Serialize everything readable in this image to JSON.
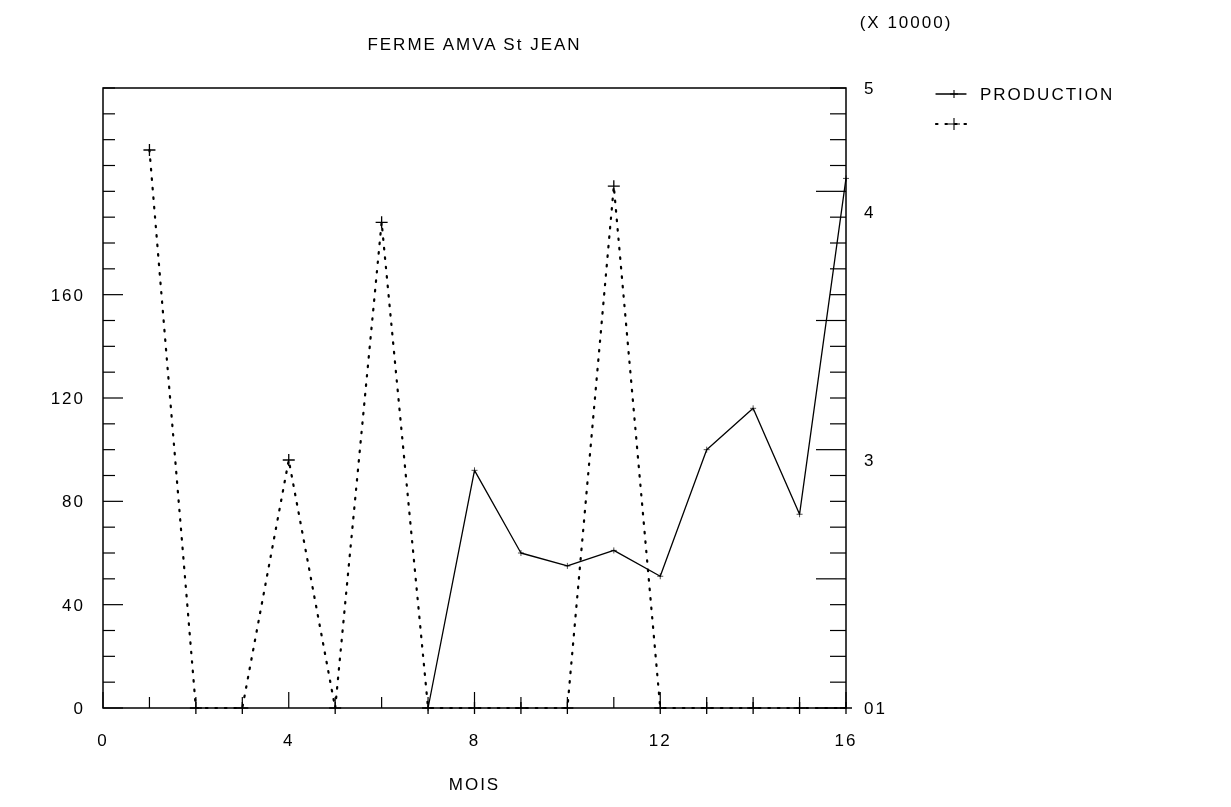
{
  "chart_data": {
    "type": "line",
    "title": "FERME AMVA St JEAN",
    "xlabel": "MOIS",
    "y2label": "(X 10000)",
    "xlim": [
      0,
      16
    ],
    "xticks": [
      0,
      {
        "value": 1,
        "label": null
      },
      {
        "value": 2,
        "label": null
      },
      {
        "value": 3,
        "label": null
      },
      4,
      {
        "value": 5,
        "label": null
      },
      {
        "value": 6,
        "label": null
      },
      {
        "value": 7,
        "label": null
      },
      8,
      {
        "value": 9,
        "label": null
      },
      {
        "value": 10,
        "label": null
      },
      {
        "value": 11,
        "label": null
      },
      12,
      {
        "value": 13,
        "label": null
      },
      {
        "value": 14,
        "label": null
      },
      {
        "value": 15,
        "label": null
      },
      16
    ],
    "ylim": [
      0,
      240
    ],
    "yticks": [
      0,
      {
        "value": 10,
        "label": null
      },
      {
        "value": 20,
        "label": null
      },
      {
        "value": 30,
        "label": null
      },
      40,
      {
        "value": 50,
        "label": null
      },
      {
        "value": 60,
        "label": null
      },
      {
        "value": 70,
        "label": null
      },
      80,
      {
        "value": 90,
        "label": null
      },
      {
        "value": 100,
        "label": null
      },
      {
        "value": 110,
        "label": null
      },
      120,
      {
        "value": 130,
        "label": null
      },
      {
        "value": 140,
        "label": null
      },
      {
        "value": 150,
        "label": null
      },
      160,
      {
        "value": 170,
        "label": null
      },
      {
        "value": 180,
        "label": null
      },
      {
        "value": 190,
        "label": null
      },
      {
        "value": 200,
        "label": null
      },
      {
        "value": 210,
        "label": null
      },
      {
        "value": 220,
        "label": null
      },
      {
        "value": 230,
        "label": null
      },
      {
        "value": 240,
        "label": null
      }
    ],
    "annotations": [
      "01",
      "3",
      "4",
      "5"
    ],
    "legend": "top right",
    "marker": "cross",
    "series": [
      {
        "name": "PRODUCTION",
        "color": "#000000",
        "line_style": "solid",
        "x": [
          7,
          8,
          9,
          10,
          11,
          12,
          13,
          14,
          15,
          16
        ],
        "values": [
          0,
          92,
          60,
          55,
          61,
          51,
          100,
          116,
          75,
          205
        ]
      },
      {
        "color": "#000000",
        "line_style": "dotted",
        "x": [
          1,
          2,
          3,
          4,
          5,
          6,
          7,
          8,
          9,
          10,
          11,
          12,
          13,
          14,
          15,
          16
        ],
        "values": [
          216,
          0,
          0,
          96,
          0,
          188,
          0,
          0,
          0,
          0,
          202,
          0,
          0,
          0,
          0,
          0
        ]
      }
    ]
  }
}
